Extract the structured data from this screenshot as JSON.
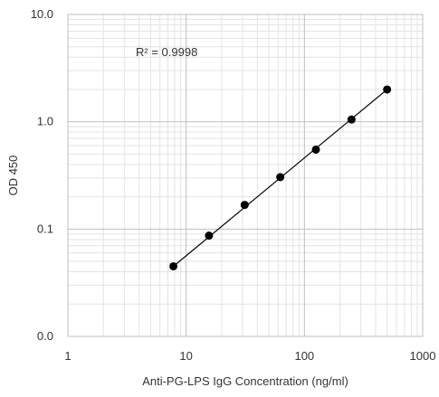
{
  "chart_data": {
    "type": "scatter",
    "title": "",
    "xlabel": "Anti-PG-LPS IgG Concentration (ng/ml)",
    "ylabel": "OD 450",
    "x_scale": "log",
    "y_scale": "log",
    "xlim": [
      1,
      1000
    ],
    "ylim": [
      0.01,
      10
    ],
    "x_tick_labels": [
      "1",
      "10",
      "100",
      "1000"
    ],
    "y_tick_labels": [
      "0.0",
      "0.1",
      "1.0",
      "10.0"
    ],
    "y_tick_values": [
      0.01,
      0.1,
      1,
      10
    ],
    "x_tick_values": [
      1,
      10,
      100,
      1000
    ],
    "grid": true,
    "minor_grid": true,
    "legend": "none",
    "annotation": "R² = 0.9998",
    "series": [
      {
        "points": [
          {
            "x": 7.8,
            "y": 0.045
          },
          {
            "x": 15.6,
            "y": 0.087
          },
          {
            "x": 31.25,
            "y": 0.168
          },
          {
            "x": 62.5,
            "y": 0.305
          },
          {
            "x": 125,
            "y": 0.55
          },
          {
            "x": 250,
            "y": 1.05
          },
          {
            "x": 500,
            "y": 2.0
          }
        ]
      }
    ],
    "trendline": {
      "type": "power",
      "from": {
        "x": 7.8,
        "y": 0.045
      },
      "to": {
        "x": 500,
        "y": 2.0
      }
    },
    "colors": {
      "marker": "#000000",
      "trendline": "#000000",
      "major_grid": "#bfbfbf",
      "minor_grid": "#e3e3e3",
      "text": "#333333"
    }
  }
}
